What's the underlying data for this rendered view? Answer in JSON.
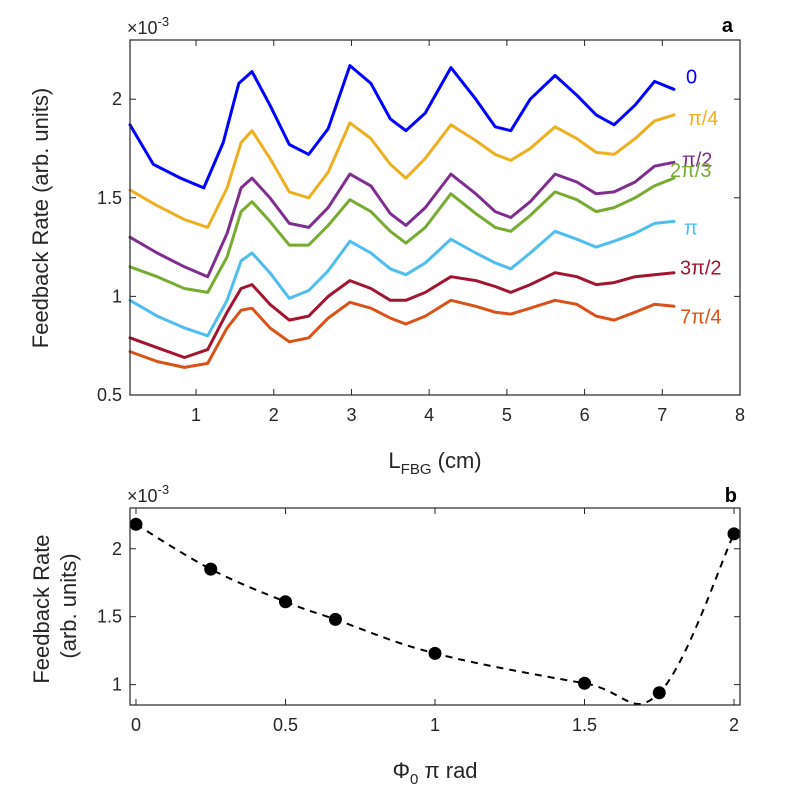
{
  "chart_data": [
    {
      "id": "panel-a",
      "type": "line",
      "panel_letter": "a",
      "exponent_label": "×10",
      "exponent_power": "-3",
      "ylabel": "Feedback Rate (arb. units)",
      "xlabel_main": "L",
      "xlabel_sub": "FBG",
      "xlabel_unit": " (cm)",
      "xlim": [
        0.15,
        8
      ],
      "ylim": [
        0.5,
        2.3
      ],
      "xticks": [
        1,
        2,
        3,
        4,
        5,
        6,
        7,
        8
      ],
      "xtick_labels": [
        "1",
        "2",
        "3",
        "4",
        "5",
        "6",
        "7",
        "8"
      ],
      "yticks": [
        0.5,
        1,
        1.5,
        2
      ],
      "ytick_labels": [
        "0.5",
        "1",
        "1.5",
        "2"
      ],
      "series": [
        {
          "name": "0",
          "color": "#0000ff",
          "x": [
            0.15,
            0.45,
            0.8,
            1.1,
            1.35,
            1.55,
            1.72,
            1.95,
            2.2,
            2.45,
            2.7,
            2.98,
            3.25,
            3.5,
            3.7,
            3.95,
            4.28,
            4.6,
            4.85,
            5.05,
            5.3,
            5.62,
            5.9,
            6.15,
            6.38,
            6.65,
            6.9,
            7.15
          ],
          "y": [
            1.87,
            1.67,
            1.6,
            1.55,
            1.78,
            2.08,
            2.14,
            1.97,
            1.77,
            1.72,
            1.85,
            2.17,
            2.08,
            1.9,
            1.84,
            1.93,
            2.16,
            2.0,
            1.86,
            1.84,
            2.0,
            2.12,
            2.02,
            1.92,
            1.87,
            1.97,
            2.09,
            2.05
          ]
        },
        {
          "name": "π/4",
          "color": "#edb120",
          "x": [
            0.15,
            0.5,
            0.85,
            1.15,
            1.4,
            1.58,
            1.72,
            1.95,
            2.2,
            2.45,
            2.7,
            2.98,
            3.25,
            3.5,
            3.7,
            3.95,
            4.28,
            4.6,
            4.85,
            5.05,
            5.3,
            5.62,
            5.9,
            6.15,
            6.38,
            6.65,
            6.9,
            7.15
          ],
          "y": [
            1.54,
            1.46,
            1.39,
            1.35,
            1.55,
            1.78,
            1.84,
            1.7,
            1.53,
            1.5,
            1.63,
            1.88,
            1.8,
            1.67,
            1.6,
            1.7,
            1.87,
            1.79,
            1.72,
            1.69,
            1.75,
            1.86,
            1.8,
            1.73,
            1.72,
            1.8,
            1.89,
            1.92
          ]
        },
        {
          "name": "π/2",
          "color": "#7e2f8e",
          "x": [
            0.15,
            0.5,
            0.85,
            1.15,
            1.4,
            1.58,
            1.72,
            1.95,
            2.2,
            2.45,
            2.7,
            2.98,
            3.25,
            3.5,
            3.7,
            3.95,
            4.28,
            4.6,
            4.85,
            5.05,
            5.3,
            5.62,
            5.9,
            6.15,
            6.38,
            6.65,
            6.9,
            7.15
          ],
          "y": [
            1.3,
            1.22,
            1.15,
            1.1,
            1.32,
            1.55,
            1.6,
            1.5,
            1.37,
            1.35,
            1.45,
            1.62,
            1.56,
            1.42,
            1.36,
            1.45,
            1.62,
            1.52,
            1.43,
            1.4,
            1.48,
            1.62,
            1.58,
            1.52,
            1.53,
            1.58,
            1.66,
            1.68
          ]
        },
        {
          "name": "2π/3",
          "color": "#77ac30",
          "x": [
            0.15,
            0.5,
            0.85,
            1.15,
            1.4,
            1.58,
            1.72,
            1.95,
            2.2,
            2.45,
            2.7,
            2.98,
            3.25,
            3.5,
            3.7,
            3.95,
            4.28,
            4.6,
            4.85,
            5.05,
            5.3,
            5.62,
            5.9,
            6.15,
            6.38,
            6.65,
            6.9,
            7.15
          ],
          "y": [
            1.15,
            1.1,
            1.04,
            1.02,
            1.2,
            1.43,
            1.48,
            1.38,
            1.26,
            1.26,
            1.36,
            1.49,
            1.43,
            1.33,
            1.27,
            1.35,
            1.52,
            1.42,
            1.35,
            1.33,
            1.41,
            1.53,
            1.49,
            1.43,
            1.45,
            1.5,
            1.56,
            1.6
          ]
        },
        {
          "name": "π",
          "color": "#4dbeee",
          "x": [
            0.15,
            0.5,
            0.85,
            1.15,
            1.4,
            1.58,
            1.72,
            1.95,
            2.2,
            2.45,
            2.7,
            2.98,
            3.25,
            3.5,
            3.7,
            3.95,
            4.28,
            4.6,
            4.85,
            5.05,
            5.3,
            5.62,
            5.9,
            6.15,
            6.38,
            6.65,
            6.9,
            7.15
          ],
          "y": [
            0.98,
            0.9,
            0.84,
            0.8,
            0.98,
            1.18,
            1.22,
            1.12,
            0.99,
            1.03,
            1.13,
            1.28,
            1.22,
            1.14,
            1.11,
            1.17,
            1.29,
            1.22,
            1.17,
            1.14,
            1.22,
            1.33,
            1.29,
            1.25,
            1.28,
            1.32,
            1.37,
            1.38
          ]
        },
        {
          "name": "3π/2",
          "color": "#a2142f",
          "x": [
            0.15,
            0.5,
            0.85,
            1.15,
            1.4,
            1.58,
            1.72,
            1.95,
            2.2,
            2.45,
            2.7,
            2.98,
            3.25,
            3.5,
            3.7,
            3.95,
            4.28,
            4.6,
            4.85,
            5.05,
            5.3,
            5.62,
            5.9,
            6.15,
            6.38,
            6.65,
            6.9,
            7.15
          ],
          "y": [
            0.79,
            0.74,
            0.69,
            0.73,
            0.92,
            1.04,
            1.06,
            0.96,
            0.88,
            0.9,
            1.0,
            1.08,
            1.04,
            0.98,
            0.98,
            1.02,
            1.1,
            1.08,
            1.05,
            1.02,
            1.06,
            1.12,
            1.1,
            1.06,
            1.07,
            1.1,
            1.11,
            1.12
          ]
        },
        {
          "name": "7π/4",
          "color": "#d95319",
          "x": [
            0.15,
            0.5,
            0.85,
            1.15,
            1.4,
            1.58,
            1.72,
            1.95,
            2.2,
            2.45,
            2.7,
            2.98,
            3.25,
            3.5,
            3.7,
            3.95,
            4.28,
            4.6,
            4.85,
            5.05,
            5.3,
            5.62,
            5.9,
            6.15,
            6.38,
            6.65,
            6.9,
            7.15
          ],
          "y": [
            0.72,
            0.67,
            0.64,
            0.66,
            0.84,
            0.93,
            0.94,
            0.84,
            0.77,
            0.79,
            0.89,
            0.97,
            0.94,
            0.89,
            0.86,
            0.9,
            0.98,
            0.95,
            0.92,
            0.91,
            0.94,
            0.98,
            0.96,
            0.9,
            0.88,
            0.92,
            0.96,
            0.95
          ]
        }
      ]
    },
    {
      "id": "panel-b",
      "type": "scatter",
      "panel_letter": "b",
      "exponent_label": "×10",
      "exponent_power": "-3",
      "ylabel_line1": "Feedback Rate",
      "ylabel_line2": "(arb. units)",
      "xlabel_main": "Φ",
      "xlabel_sub": "0",
      "xlabel_unit": " π rad",
      "xlim": [
        -0.02,
        2.02
      ],
      "ylim": [
        0.85,
        2.3
      ],
      "xticks": [
        0,
        0.5,
        1,
        1.5,
        2
      ],
      "xtick_labels": [
        "0",
        "0.5",
        "1",
        "1.5",
        "2"
      ],
      "yticks": [
        1,
        1.5,
        2
      ],
      "ytick_labels": [
        "1",
        "1.5",
        "2"
      ],
      "x": [
        0,
        0.25,
        0.5,
        0.667,
        1.0,
        1.5,
        1.75,
        2.0
      ],
      "y": [
        2.18,
        1.85,
        1.61,
        1.48,
        1.23,
        1.01,
        0.94,
        2.11
      ],
      "marker_color": "#000000",
      "line_style": "dashed"
    }
  ]
}
